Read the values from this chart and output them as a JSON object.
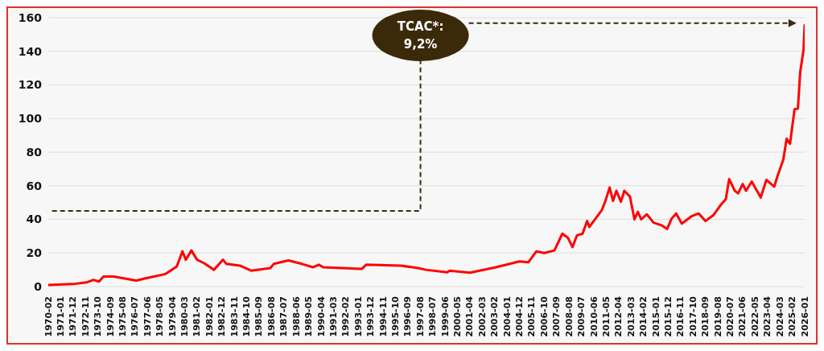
{
  "chart_data": {
    "type": "line",
    "annotations": [
      "TCAC*: 9,2%"
    ],
    "x": [
      "1970-02",
      "1971-12",
      "1972-12",
      "1973-06",
      "1973-11",
      "1974-03",
      "1974-12",
      "1976-08",
      "1977-05",
      "1978-10",
      "1979-08",
      "1980-01",
      "1980-04",
      "1980-09",
      "1981-02",
      "1981-08",
      "1982-05",
      "1983-01",
      "1983-04",
      "1984-04",
      "1985-02",
      "1986-07",
      "1986-10",
      "1987-11",
      "1988-11",
      "1989-09",
      "1990-02",
      "1990-06",
      "1993-04",
      "1993-08",
      "1996-03",
      "1997-06",
      "1998-01",
      "1999-08",
      "1999-10",
      "2001-04",
      "2003-03",
      "2004-12",
      "2005-08",
      "2006-03",
      "2006-10",
      "2007-07",
      "2008-02",
      "2008-07",
      "2008-11",
      "2009-03",
      "2009-08",
      "2009-12",
      "2010-02",
      "2011-01",
      "2011-04",
      "2011-08",
      "2011-11",
      "2012-02",
      "2012-06",
      "2012-09",
      "2013-02",
      "2013-06",
      "2013-09",
      "2013-12",
      "2014-05",
      "2014-11",
      "2015-06",
      "2015-11",
      "2016-03",
      "2016-07",
      "2016-12",
      "2017-09",
      "2018-03",
      "2018-09",
      "2019-04",
      "2019-11",
      "2020-03",
      "2020-06",
      "2020-11",
      "2021-02",
      "2021-06",
      "2021-09",
      "2022-02",
      "2022-10",
      "2023-03",
      "2023-10",
      "2024-01",
      "2024-06",
      "2024-09",
      "2024-12",
      "2025-04",
      "2025-07",
      "2025-09",
      "2025-12",
      "2026-01"
    ],
    "series": [
      {
        "color": "#ff0000",
        "values": [
          1,
          1.5,
          2.5,
          4,
          3,
          6,
          6,
          3.6,
          5,
          7.5,
          12,
          21,
          16,
          21.5,
          16,
          14,
          10,
          16,
          13.5,
          12.5,
          9.5,
          11,
          13.5,
          15.6,
          13.5,
          11.5,
          13,
          11.5,
          10.5,
          13,
          12.5,
          11,
          10,
          8.5,
          9.5,
          8.3,
          11.5,
          15,
          14.5,
          21,
          20,
          21.5,
          31.5,
          29,
          23.5,
          30.5,
          31.5,
          39,
          35.5,
          45.5,
          50.5,
          59,
          51,
          57,
          50.5,
          57,
          53.5,
          40,
          44.5,
          40,
          43,
          38,
          36.5,
          34.3,
          40.5,
          43.5,
          37.5,
          42,
          43.5,
          39,
          42.5,
          49,
          52,
          64,
          57,
          55.5,
          61,
          57,
          62.5,
          53,
          63.5,
          59.5,
          66,
          75.5,
          88,
          85,
          105.5,
          106,
          127.5,
          141,
          156
        ]
      }
    ],
    "xlim": [
      "1970-02",
      "2026-01"
    ],
    "xticks": [
      "1970-02",
      "1971-01",
      "1971-12",
      "1972-11",
      "1973-10",
      "1974-09",
      "1975-08",
      "1976-07",
      "1977-06",
      "1978-05",
      "1979-04",
      "1980-03",
      "1981-02",
      "1982-01",
      "1982-12",
      "1983-11",
      "1984-10",
      "1985-09",
      "1986-08",
      "1987-07",
      "1988-06",
      "1989-05",
      "1990-04",
      "1991-03",
      "1992-02",
      "1993-01",
      "1993-12",
      "1994-11",
      "1995-10",
      "1996-09",
      "1997-08",
      "1998-07",
      "1999-06",
      "2000-05",
      "2001-04",
      "2002-03",
      "2003-02",
      "2004-01",
      "2004-12",
      "2005-11",
      "2006-10",
      "2007-09",
      "2008-08",
      "2009-07",
      "2010-06",
      "2011-05",
      "2012-04",
      "2013-03",
      "2014-02",
      "2015-01",
      "2015-12",
      "2016-11",
      "2017-10",
      "2018-09",
      "2019-08",
      "2020-07",
      "2021-06",
      "2022-05",
      "2023-04",
      "2024-03",
      "2025-02",
      "2026-01"
    ],
    "ylim": [
      0,
      160
    ],
    "yticks": [
      0,
      20,
      40,
      60,
      80,
      100,
      120,
      140,
      160
    ],
    "grid": "y",
    "marker": "none",
    "line_style": "solid"
  }
}
